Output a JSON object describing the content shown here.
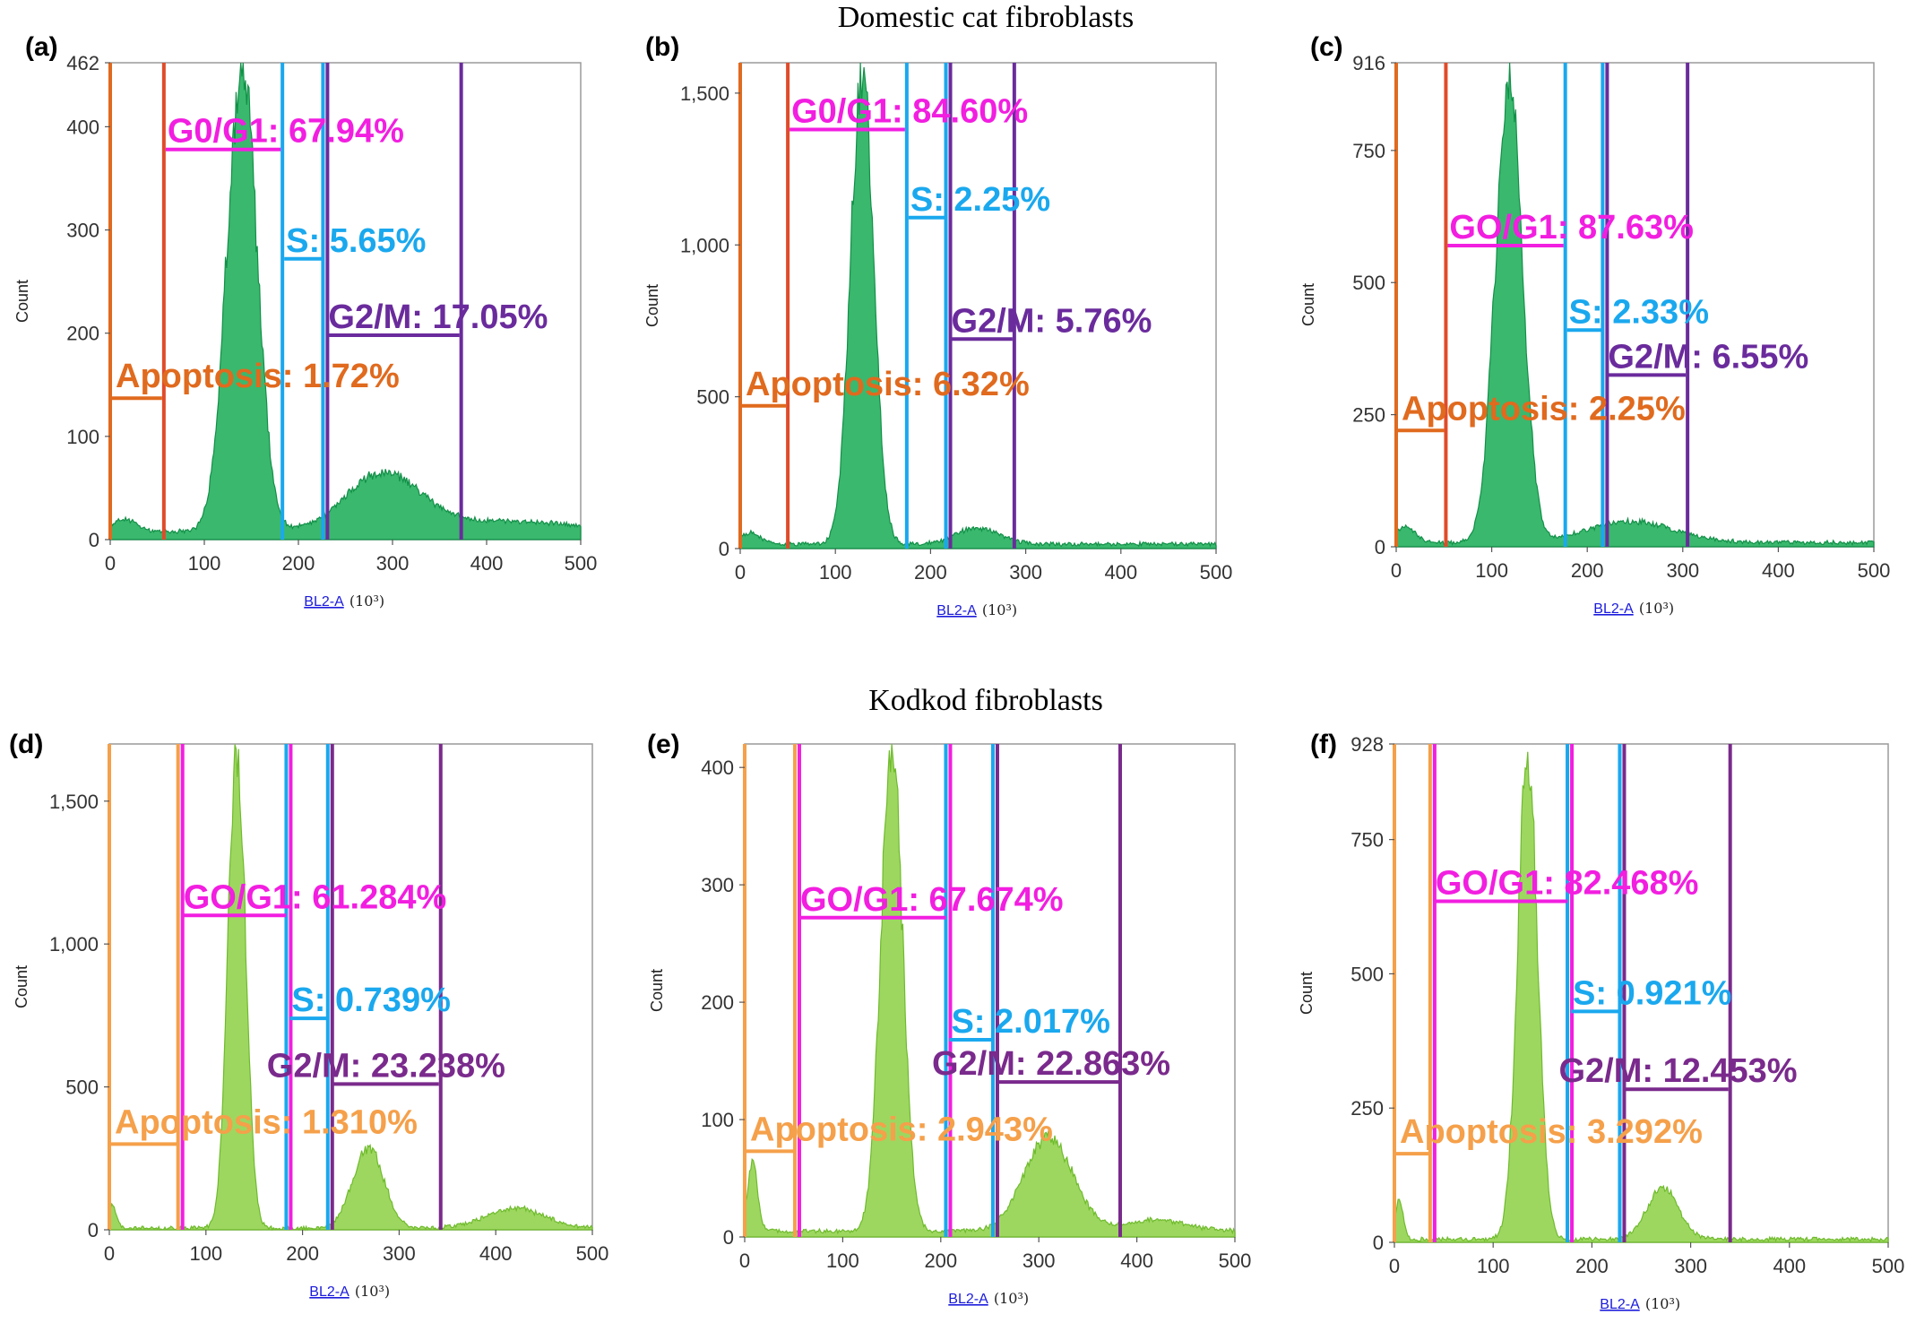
{
  "section_titles": [
    "Domestic cat fibroblasts",
    "Kodkod fibroblasts"
  ],
  "colors": {
    "domestic_fill": "#1fae5a",
    "domestic_stroke": "#129048",
    "kodkod_fill": "#8fd24a",
    "kodkod_stroke": "#6fbb2c",
    "apoptosis_domestic": "#e06a1e",
    "apoptosis_kodkod": "#f5a04a",
    "g0g1": "#f21ee0",
    "s": "#1aa8ee",
    "g2m_domestic": "#6a2b9c",
    "g2m_kodkod": "#7a2a8c",
    "domestic_g0g1_left": "#e04b2a"
  },
  "chart_data": [
    {
      "panel": "(a)",
      "type": "histogram",
      "group": "domestic",
      "xlabel": "BL2-A",
      "xunit": "(10³)",
      "ylabel": "Count",
      "xlim": [
        0,
        500
      ],
      "ylim": [
        0,
        462
      ],
      "xticks": [
        0,
        100,
        200,
        300,
        400,
        500
      ],
      "yticks": [
        0,
        100,
        200,
        300,
        400,
        462
      ],
      "ytick_labels": [
        "0",
        "100",
        "200",
        "300",
        "400",
        "462"
      ],
      "peaks": [
        {
          "center": 140,
          "height": 450,
          "width": 16
        },
        {
          "center": 290,
          "height": 55,
          "width": 40
        },
        {
          "center": 420,
          "height": 10,
          "width": 70
        },
        {
          "center": 15,
          "height": 12,
          "width": 12
        }
      ],
      "baseline": 8,
      "gate_lines": [
        0,
        57,
        183,
        228,
        373
      ],
      "gates": [
        {
          "name": "Apoptosis",
          "label": "Apoptosis: 1.72%",
          "x0": 0,
          "x1": 57,
          "y": 137
        },
        {
          "name": "G0/G1",
          "label": "G0/G1: 67.94%",
          "x0": 57,
          "x1": 183,
          "y": 378
        },
        {
          "name": "S",
          "label": "S: 5.65%",
          "x0": 183,
          "x1": 228,
          "y": 272
        },
        {
          "name": "G2/M",
          "label": "G2/M: 17.05%",
          "x0": 228,
          "x1": 373,
          "y": 198
        }
      ]
    },
    {
      "panel": "(b)",
      "type": "histogram",
      "group": "domestic",
      "xlabel": "BL2-A",
      "xunit": "(10³)",
      "ylabel": "Count",
      "xlim": [
        0,
        500
      ],
      "ylim": [
        0,
        1600
      ],
      "xticks": [
        0,
        100,
        200,
        300,
        400,
        500
      ],
      "yticks": [
        0,
        500,
        1000,
        1500
      ],
      "ytick_labels": [
        "0",
        "500",
        "1,000",
        "1,500"
      ],
      "peaks": [
        {
          "center": 128,
          "height": 1560,
          "width": 12
        },
        {
          "center": 250,
          "height": 55,
          "width": 22
        },
        {
          "center": 10,
          "height": 40,
          "width": 10
        }
      ],
      "baseline": 15,
      "gate_lines": [
        0,
        50,
        175,
        218,
        288
      ],
      "gates": [
        {
          "name": "Apoptosis",
          "label": "Apoptosis: 6.32%",
          "x0": 0,
          "x1": 50,
          "y": 470
        },
        {
          "name": "G0/G1",
          "label": "G0/G1: 84.60%",
          "x0": 50,
          "x1": 175,
          "y": 1380
        },
        {
          "name": "S",
          "label": "S: 2.25%",
          "x0": 175,
          "x1": 218,
          "y": 1090
        },
        {
          "name": "G2/M",
          "label": "G2/M: 5.76%",
          "x0": 218,
          "x1": 288,
          "y": 690
        }
      ]
    },
    {
      "panel": "(c)",
      "type": "histogram",
      "group": "domestic",
      "xlabel": "BL2-A",
      "xunit": "(10³)",
      "ylabel": "Count",
      "xlim": [
        0,
        500
      ],
      "ylim": [
        0,
        916
      ],
      "xticks": [
        0,
        100,
        200,
        300,
        400,
        500
      ],
      "yticks": [
        0,
        250,
        500,
        750,
        916
      ],
      "ytick_labels": [
        "0",
        "250",
        "500",
        "750",
        "916"
      ],
      "peaks": [
        {
          "center": 118,
          "height": 880,
          "width": 14
        },
        {
          "center": 245,
          "height": 40,
          "width": 45
        },
        {
          "center": 10,
          "height": 30,
          "width": 10
        }
      ],
      "baseline": 8,
      "gate_lines": [
        0,
        52,
        177,
        218,
        305
      ],
      "gates": [
        {
          "name": "Apoptosis",
          "label": "Apoptosis: 2.25%",
          "x0": 0,
          "x1": 52,
          "y": 220
        },
        {
          "name": "G0/G1",
          "label": "GO/G1: 87.63%",
          "x0": 52,
          "x1": 177,
          "y": 570
        },
        {
          "name": "S",
          "label": "S: 2.33%",
          "x0": 177,
          "x1": 218,
          "y": 410
        },
        {
          "name": "G2/M",
          "label": "G2/M: 6.55%",
          "x0": 218,
          "x1": 305,
          "y": 325
        }
      ]
    },
    {
      "panel": "(d)",
      "type": "histogram",
      "group": "kodkod",
      "xlabel": "BL2-A",
      "xunit": "(10³)",
      "ylabel": "Count",
      "xlim": [
        0,
        500
      ],
      "ylim": [
        0,
        1700
      ],
      "xticks": [
        0,
        100,
        200,
        300,
        400,
        500
      ],
      "yticks": [
        0,
        500,
        1000,
        1500
      ],
      "ytick_labels": [
        "0",
        "500",
        "1,000",
        "1,500"
      ],
      "peaks": [
        {
          "center": 132,
          "height": 1680,
          "width": 9
        },
        {
          "center": 268,
          "height": 280,
          "width": 16
        },
        {
          "center": 420,
          "height": 70,
          "width": 30
        },
        {
          "center": 3,
          "height": 80,
          "width": 4
        }
      ],
      "baseline": 6,
      "gate_lines": [
        0,
        73,
        185,
        228,
        343
      ],
      "gates": [
        {
          "name": "Apoptosis",
          "label": "Apoptosis: 1.310%",
          "x0": 0,
          "x1": 73,
          "y": 300
        },
        {
          "name": "G0/G1",
          "label": "GO/G1: 61.284%",
          "x0": 73,
          "x1": 185,
          "y": 1100
        },
        {
          "name": "S",
          "label": "S: 0.739%",
          "x0": 185,
          "x1": 228,
          "y": 740
        },
        {
          "name": "G2/M",
          "label": "G2/M: 23.238%",
          "x0": 228,
          "x1": 343,
          "y": 510
        }
      ]
    },
    {
      "panel": "(e)",
      "type": "histogram",
      "group": "kodkod",
      "xlabel": "BL2-A",
      "xunit": "(10³)",
      "ylabel": "Count",
      "xlim": [
        0,
        500
      ],
      "ylim": [
        0,
        420
      ],
      "xticks": [
        0,
        100,
        200,
        300,
        400,
        500
      ],
      "yticks": [
        0,
        100,
        200,
        300,
        400
      ],
      "ytick_labels": [
        "0",
        "100",
        "200",
        "300",
        "400"
      ],
      "peaks": [
        {
          "center": 150,
          "height": 415,
          "width": 11
        },
        {
          "center": 310,
          "height": 80,
          "width": 25
        },
        {
          "center": 420,
          "height": 10,
          "width": 30
        },
        {
          "center": 8,
          "height": 60,
          "width": 5
        }
      ],
      "baseline": 5,
      "gate_lines": [
        0,
        53,
        207,
        255,
        383
      ],
      "gates": [
        {
          "name": "Apoptosis",
          "label": "Apoptosis: 2.943%",
          "x0": 0,
          "x1": 53,
          "y": 73
        },
        {
          "name": "G0/G1",
          "label": "GO/G1: 67.674%",
          "x0": 53,
          "x1": 207,
          "y": 272
        },
        {
          "name": "S",
          "label": "S: 2.017%",
          "x0": 207,
          "x1": 255,
          "y": 168
        },
        {
          "name": "G2/M",
          "label": "G2/M: 22.863%",
          "x0": 255,
          "x1": 383,
          "y": 132
        }
      ]
    },
    {
      "panel": "(f)",
      "type": "histogram",
      "group": "kodkod",
      "xlabel": "BL2-A",
      "xunit": "(10³)",
      "ylabel": "Count",
      "xlim": [
        0,
        500
      ],
      "ylim": [
        0,
        928
      ],
      "xticks": [
        0,
        100,
        200,
        300,
        400,
        500
      ],
      "yticks": [
        0,
        250,
        500,
        750,
        928
      ],
      "ytick_labels": [
        "0",
        "250",
        "500",
        "750",
        "928"
      ],
      "peaks": [
        {
          "center": 135,
          "height": 915,
          "width": 10
        },
        {
          "center": 272,
          "height": 95,
          "width": 16
        },
        {
          "center": 5,
          "height": 70,
          "width": 4
        }
      ],
      "baseline": 6,
      "gate_lines": [
        0,
        38,
        177,
        230,
        340
      ],
      "gates": [
        {
          "name": "Apoptosis",
          "label": "Apoptosis: 3.292%",
          "x0": 0,
          "x1": 38,
          "y": 165
        },
        {
          "name": "G0/G1",
          "label": "GO/G1: 82.468%",
          "x0": 38,
          "x1": 177,
          "y": 635
        },
        {
          "name": "S",
          "label": "S: 0.921%",
          "x0": 177,
          "x1": 230,
          "y": 430
        },
        {
          "name": "G2/M",
          "label": "G2/M: 12.453%",
          "x0": 230,
          "x1": 340,
          "y": 285
        }
      ]
    }
  ]
}
